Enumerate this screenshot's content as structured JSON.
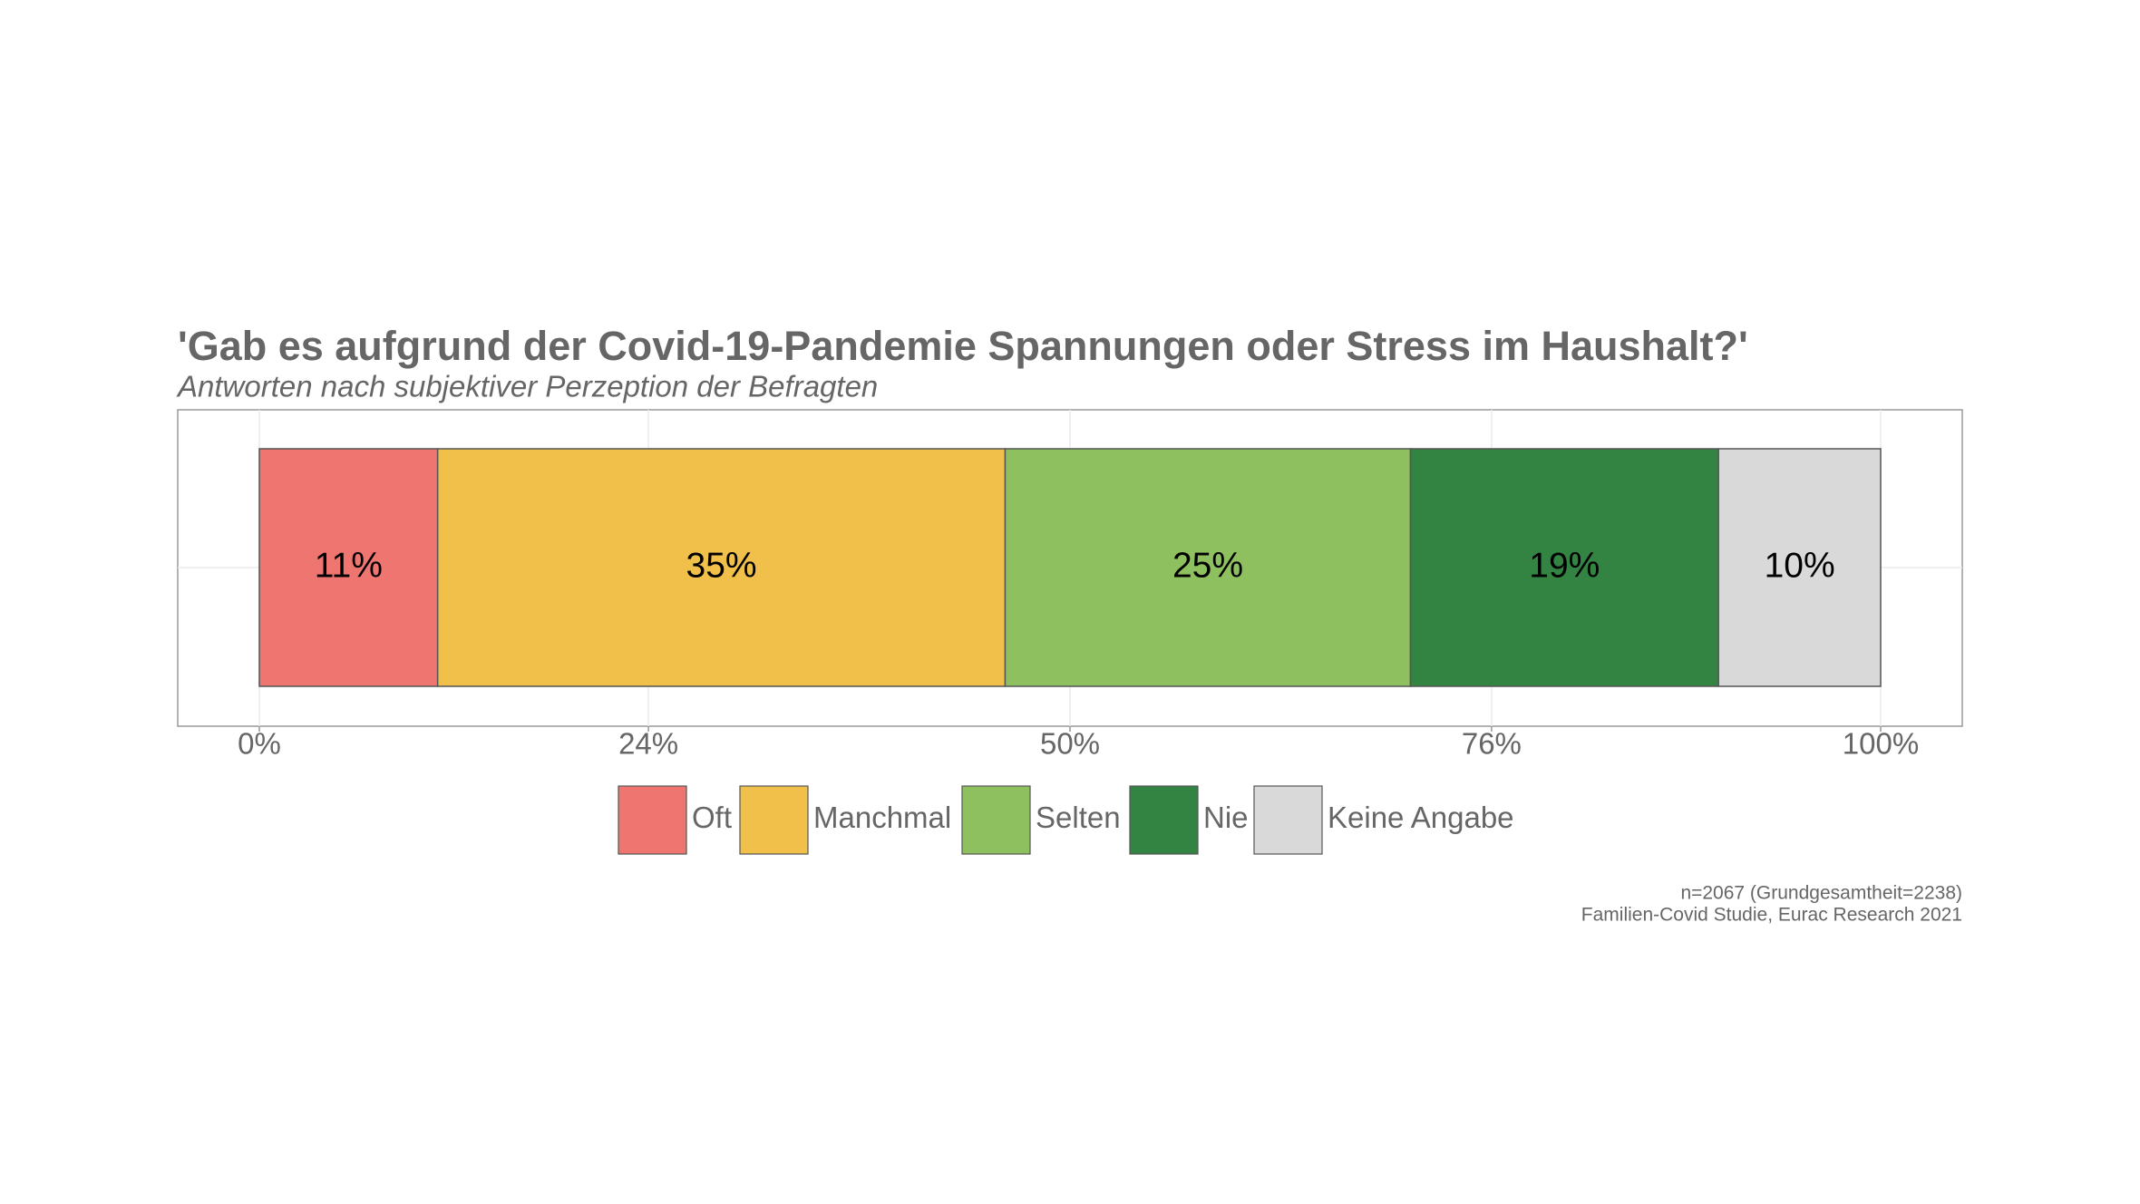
{
  "chart_data": {
    "type": "stacked-bar-horizontal",
    "title": "'Gab es aufgrund der Covid-19-Pandemie Spannungen oder Stress im Haushalt?'",
    "subtitle": "Antworten nach subjektiver Perzeption der Befragten",
    "categories": [
      null
    ],
    "series": [
      {
        "name": "Oft",
        "color": "#ee7570",
        "values": [
          11
        ],
        "value_labels": [
          "11%"
        ]
      },
      {
        "name": "Manchmal",
        "color": "#f0c04a",
        "values": [
          35
        ],
        "value_labels": [
          "35%"
        ]
      },
      {
        "name": "Selten",
        "color": "#8ec060",
        "values": [
          25
        ],
        "value_labels": [
          "25%"
        ]
      },
      {
        "name": "Nie",
        "color": "#338443",
        "values": [
          19
        ],
        "value_labels": [
          "19%"
        ]
      },
      {
        "name": "Keine Angabe",
        "color": "#d8d9d8",
        "values": [
          10
        ],
        "value_labels": [
          "10%"
        ]
      }
    ],
    "xlim": [
      0,
      100
    ],
    "xticks": [
      {
        "value": 0,
        "label": "0%"
      },
      {
        "value": 24,
        "label": "24%"
      },
      {
        "value": 50,
        "label": "50%"
      },
      {
        "value": 76,
        "label": "76%"
      },
      {
        "value": 100,
        "label": "100%"
      }
    ],
    "grid": true,
    "legend": "bottom",
    "caption": [
      "n=2067 (Grundgesamtheit=2238)",
      "Familien-Covid Studie, Eurac Research 2021"
    ]
  }
}
